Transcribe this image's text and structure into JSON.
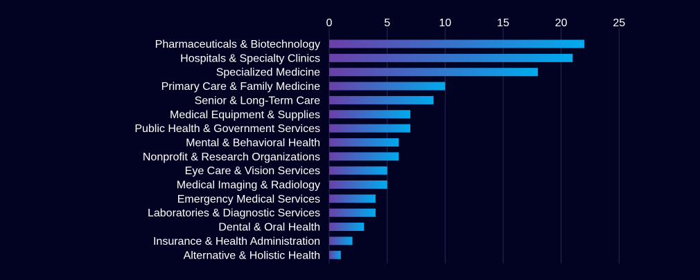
{
  "colors": {
    "background": "#020222",
    "bar_gradient_start": "#6b3fa8",
    "bar_gradient_end": "#00aaee",
    "text": "#ffffff",
    "grid": "#2a2a55"
  },
  "chart_data": {
    "type": "bar",
    "orientation": "horizontal",
    "title": "",
    "xlabel": "",
    "ylabel": "",
    "xlim": [
      0,
      25
    ],
    "x_ticks": [
      0,
      5,
      10,
      15,
      20,
      25
    ],
    "x_axis_position": "top",
    "grid": true,
    "legend": "none",
    "categories": [
      "Pharmaceuticals & Biotechnology",
      "Hospitals & Specialty Clinics",
      "Specialized Medicine",
      "Primary Care & Family Medicine",
      "Senior & Long-Term Care",
      "Medical Equipment & Supplies",
      "Public Health & Government Services",
      "Mental & Behavioral Health",
      "Nonprofit & Research Organizations",
      "Eye Care & Vision Services",
      "Medical Imaging & Radiology",
      "Emergency Medical Services",
      "Laboratories & Diagnostic Services",
      "Dental & Oral Health",
      "Insurance & Health Administration",
      "Alternative & Holistic Health"
    ],
    "values": [
      22,
      21,
      18,
      10,
      9,
      7,
      7,
      6,
      6,
      5,
      5,
      4,
      4,
      3,
      2,
      1
    ]
  }
}
